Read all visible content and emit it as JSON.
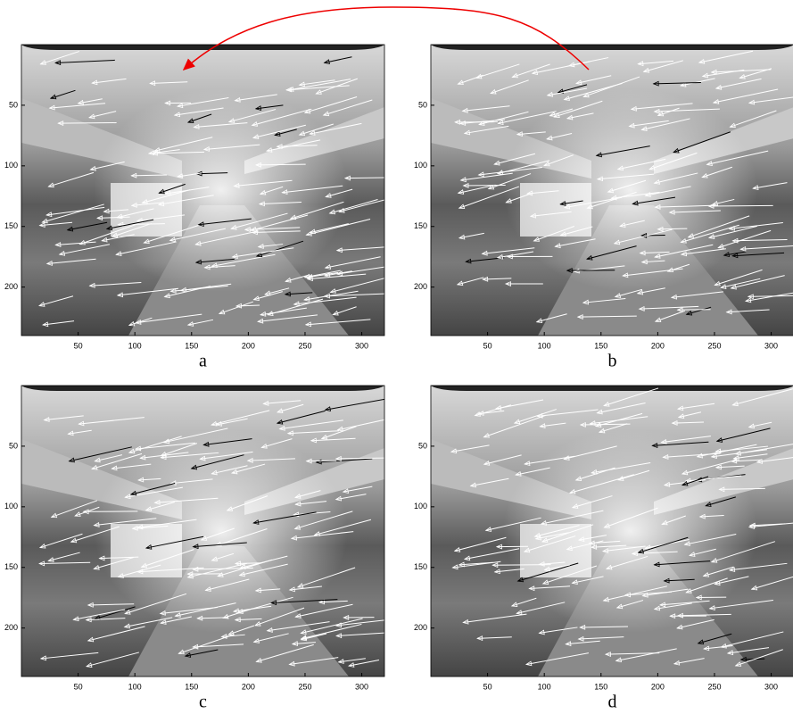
{
  "axes": {
    "xlim": [
      0,
      320
    ],
    "ylim": [
      0,
      240
    ],
    "xticks": [
      50,
      100,
      150,
      200,
      250,
      300
    ],
    "yticks": [
      50,
      100,
      150,
      200
    ]
  },
  "panels": [
    {
      "label": "a"
    },
    {
      "label": "b"
    },
    {
      "label": "c"
    },
    {
      "label": "d"
    }
  ]
}
